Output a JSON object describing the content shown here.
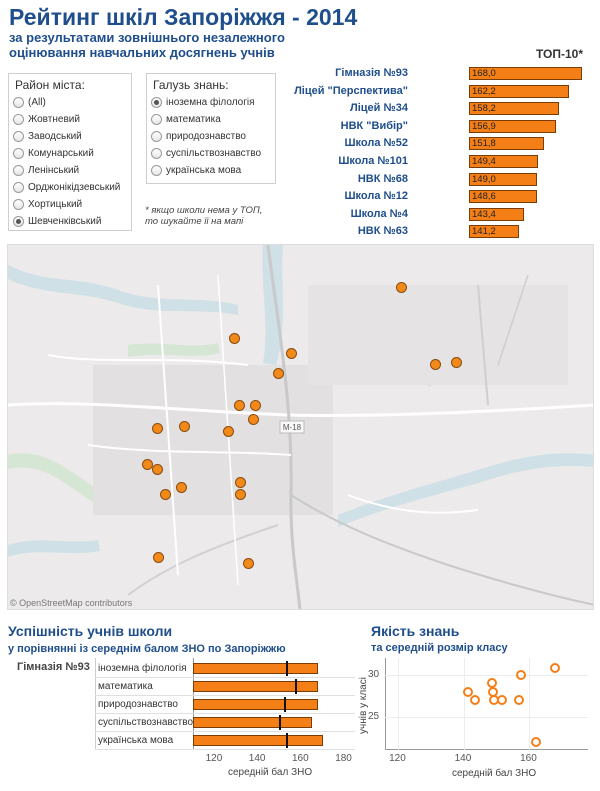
{
  "title": "Рейтинг шкіл Запоріжжя - 2014",
  "subtitle": [
    "за результатами зовнішнього незалежного",
    "оцінювання навчальних досягнень учнів"
  ],
  "district_filter": {
    "title": "Район міста:",
    "options": [
      "(All)",
      "Жовтневий",
      "Заводський",
      "Комунарський",
      "Ленінський",
      "Орджонікідзевський",
      "Хортицький",
      "Шевченківський"
    ],
    "selected": "Шевченківський"
  },
  "subject_filter": {
    "title": "Галузь знань:",
    "options": [
      "іноземна філологія",
      "математика",
      "природознавство",
      "суспільствознавство",
      "українська мова"
    ],
    "selected": "іноземна філологія"
  },
  "note": [
    "* якщо школи нема у ТОП,",
    "то шукайте її на мапі"
  ],
  "map": {
    "credit": "© OpenStreetMap contributors",
    "road_label": "М-18",
    "marker_color": "#f28a1a"
  },
  "performance_section": {
    "title": "Успішність учнів школи",
    "subtitle": "у порівнянні із середнім балом ЗНО по Запоріжжю",
    "school": "Гімназія №93"
  },
  "quality_section": {
    "title": "Якість знань",
    "subtitle": "та середній розмір класу"
  },
  "accent_color": "#f57f17",
  "chart_data": [
    {
      "type": "bar",
      "title": "ТОП-10*",
      "categories": [
        "Гімназія №93",
        "Ліцей \"Перспектива\"",
        "Ліцей  №34",
        "НВК \"Вибір\"",
        "Школа №52",
        "Школа №101",
        "НВК №68",
        "Школа №12",
        "Школа №4",
        "НВК №63"
      ],
      "values": [
        168.0,
        162.2,
        158.2,
        156.9,
        151.8,
        149.4,
        149.0,
        148.6,
        143.4,
        141.2
      ],
      "value_labels": [
        "168,0",
        "162,2",
        "158,2",
        "156,9",
        "151,8",
        "149,4",
        "149,0",
        "148,6",
        "143,4",
        "141,2"
      ],
      "orientation": "horizontal"
    },
    {
      "type": "bar",
      "categories": [
        "іноземна філологія",
        "математика",
        "природознавство",
        "суспільствознавство",
        "українська мова"
      ],
      "series": [
        {
          "values": [
            168,
            168,
            168,
            165,
            170
          ]
        },
        {
          "values": [
            153,
            157,
            152,
            150,
            153
          ]
        }
      ],
      "xlabel": "середній бал ЗНО",
      "xlim": [
        110,
        185
      ],
      "xticks": [
        "120",
        "140",
        "160",
        "180"
      ],
      "orientation": "horizontal"
    },
    {
      "type": "scatter",
      "xlabel": "середній бал ЗНО",
      "ylabel": "учнів у класі",
      "xlim": [
        116,
        178
      ],
      "ylim": [
        21,
        32
      ],
      "xticks": [
        "120",
        "140",
        "160"
      ],
      "yticks": [
        "25",
        "30"
      ],
      "points": [
        {
          "x": 168.0,
          "y": 30.8
        },
        {
          "x": 157.5,
          "y": 30.0
        },
        {
          "x": 151.8,
          "y": 27.0
        },
        {
          "x": 156.9,
          "y": 27.0
        },
        {
          "x": 149.4,
          "y": 27.0
        },
        {
          "x": 149.0,
          "y": 28.0
        },
        {
          "x": 148.6,
          "y": 29.0
        },
        {
          "x": 143.4,
          "y": 27.0
        },
        {
          "x": 141.2,
          "y": 28.0
        },
        {
          "x": 162.2,
          "y": 22.0
        }
      ]
    }
  ]
}
